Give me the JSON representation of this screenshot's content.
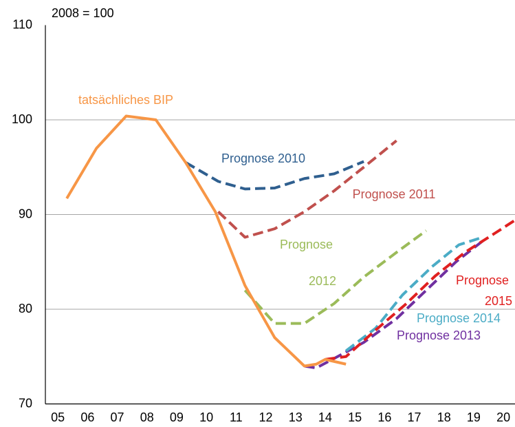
{
  "chart_data": {
    "type": "line",
    "ylabel": "2008 = 100",
    "ylim": [
      70,
      110
    ],
    "yticks": [
      70,
      80,
      90,
      100,
      110
    ],
    "xlim": [
      2004.58,
      2020.39
    ],
    "xticks": [
      {
        "value": 2005,
        "label": "05"
      },
      {
        "value": 2006,
        "label": "06"
      },
      {
        "value": 2007,
        "label": "07"
      },
      {
        "value": 2008,
        "label": "08"
      },
      {
        "value": 2009,
        "label": "09"
      },
      {
        "value": 2010,
        "label": "10"
      },
      {
        "value": 2011,
        "label": "11"
      },
      {
        "value": 2012,
        "label": "12"
      },
      {
        "value": 2013,
        "label": "13"
      },
      {
        "value": 2014,
        "label": "14"
      },
      {
        "value": 2015,
        "label": "15"
      },
      {
        "value": 2016,
        "label": "16"
      },
      {
        "value": 2017,
        "label": "17"
      },
      {
        "value": 2018,
        "label": "18"
      },
      {
        "value": 2019,
        "label": "19"
      },
      {
        "value": 2020,
        "label": "20"
      }
    ],
    "grid": true,
    "series": [
      {
        "name": "Prognose 2010",
        "color": "#2f5f8f",
        "dashed": true,
        "x": [
          2009.3,
          2010.4,
          2011.3,
          2012.3,
          2013.3,
          2014.3,
          2015.3
        ],
        "values": [
          95.5,
          93.5,
          92.7,
          92.8,
          93.8,
          94.3,
          95.6
        ]
      },
      {
        "name": "Prognose 2011",
        "color": "#c0504d",
        "dashed": true,
        "x": [
          2010.4,
          2011.3,
          2012.3,
          2013.3,
          2014.3,
          2015.3,
          2016.4
        ],
        "values": [
          90.3,
          87.6,
          88.5,
          90.3,
          92.5,
          95,
          97.8
        ]
      },
      {
        "name": "Prognose 2012",
        "color": "#9bbb59",
        "dashed": true,
        "x": [
          2011.3,
          2012.3,
          2013.3,
          2014.3,
          2015.3,
          2016.4,
          2017.4
        ],
        "values": [
          82,
          78.5,
          78.5,
          80.6,
          83.4,
          86,
          88.3
        ]
      },
      {
        "name": "Prognose 2013",
        "color": "#7030a0",
        "dashed": true,
        "x": [
          2013.3,
          2013.7,
          2014.3,
          2015.3,
          2016.4,
          2017.4,
          2018.4,
          2019.3
        ],
        "values": [
          74,
          73.8,
          74.8,
          76.5,
          79,
          82,
          85,
          87.2
        ]
      },
      {
        "name": "Prognose 2014",
        "color": "#4bacc6",
        "dashed": true,
        "x": [
          2014.7,
          2015.7,
          2016.6,
          2017.6,
          2018.5,
          2019.3
        ],
        "values": [
          75.6,
          78,
          81.5,
          84.5,
          86.8,
          87.6
        ]
      },
      {
        "name": "Prognose 2015",
        "color": "#e02020",
        "dashed": true,
        "x": [
          2014.0,
          2014.7,
          2015.7,
          2016.7,
          2017.7,
          2018.7,
          2019.7,
          2020.39
        ],
        "values": [
          74.7,
          75,
          77.8,
          80.5,
          83.5,
          86,
          88,
          89.4
        ]
      },
      {
        "name": "tatsächliches BIP",
        "color": "#f79646",
        "dashed": false,
        "x": [
          2005.3,
          2006.3,
          2007.3,
          2008.3,
          2009.3,
          2010.3,
          2011.3,
          2012.3,
          2013.3,
          2013.7,
          2014.0,
          2014.7
        ],
        "values": [
          91.7,
          97,
          100.4,
          100,
          95.5,
          90.3,
          82.5,
          77,
          74,
          74.2,
          74.7,
          74.2
        ]
      }
    ]
  }
}
